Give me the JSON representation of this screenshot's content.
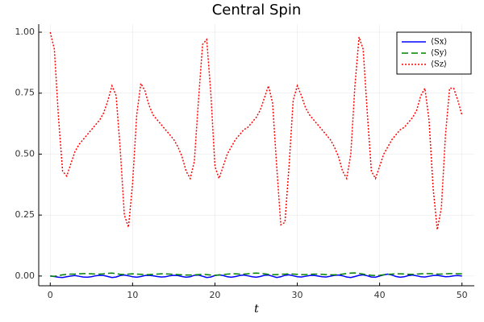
{
  "chart_data": {
    "type": "line",
    "title": "Central Spin",
    "x_label": "t",
    "x": [
      0,
      0.5,
      1,
      1.5,
      2,
      2.5,
      3,
      3.5,
      4,
      4.5,
      5,
      5.5,
      6,
      6.5,
      7,
      7.5,
      8,
      8.5,
      9,
      9.5,
      10,
      10.5,
      11,
      11.5,
      12,
      12.5,
      13,
      13.5,
      14,
      14.5,
      15,
      15.5,
      16,
      16.5,
      17,
      17.5,
      18,
      18.5,
      19,
      19.5,
      20,
      20.5,
      21,
      21.5,
      22,
      22.5,
      23,
      23.5,
      24,
      24.5,
      25,
      25.5,
      26,
      26.5,
      27,
      27.5,
      28,
      28.5,
      29,
      29.5,
      30,
      30.5,
      31,
      31.5,
      32,
      32.5,
      33,
      33.5,
      34,
      34.5,
      35,
      35.5,
      36,
      36.5,
      37,
      37.5,
      38,
      38.5,
      39,
      39.5,
      40,
      40.5,
      41,
      41.5,
      42,
      42.5,
      43,
      43.5,
      44,
      44.5,
      45,
      45.5,
      46,
      46.5,
      47,
      47.5,
      48,
      48.5,
      49,
      49.5,
      50
    ],
    "series": [
      {
        "name": "⟨Sx⟩",
        "color": "#0000ff",
        "dash": "solid",
        "values": [
          0,
          -0.002,
          -0.005,
          -0.006,
          -0.003,
          0,
          0.002,
          -0.001,
          -0.004,
          -0.005,
          -0.003,
          0.001,
          0.003,
          0.002,
          -0.002,
          -0.006,
          -0.004,
          0.002,
          0.004,
          0.001,
          -0.003,
          -0.005,
          -0.002,
          0.002,
          0.003,
          0.001,
          -0.002,
          -0.004,
          -0.003,
          0.001,
          0.003,
          0.002,
          -0.002,
          -0.005,
          -0.003,
          0.003,
          0.004,
          -0.001,
          -0.006,
          -0.004,
          0.002,
          0.005,
          0.002,
          -0.003,
          -0.005,
          -0.002,
          0.002,
          0.004,
          0.001,
          -0.003,
          -0.005,
          -0.002,
          0.003,
          0.004,
          -0.001,
          -0.006,
          -0.003,
          0.003,
          0.005,
          0.001,
          -0.003,
          -0.004,
          -0.001,
          0.002,
          0.003,
          0,
          -0.003,
          -0.004,
          -0.001,
          0.003,
          0.004,
          0.001,
          -0.004,
          -0.006,
          -0.002,
          0.003,
          0.005,
          0.001,
          -0.004,
          -0.005,
          0,
          0.005,
          0.008,
          0.004,
          -0.002,
          -0.005,
          -0.003,
          0.002,
          0.004,
          0.001,
          -0.003,
          -0.004,
          -0.001,
          0.002,
          0.003,
          0,
          -0.003,
          -0.002,
          0.001,
          0.002,
          0
        ]
      },
      {
        "name": "⟨Sy⟩",
        "color": "#008000",
        "dash": "dashed",
        "values": [
          0,
          -0.001,
          0.002,
          0.005,
          0.007,
          0.008,
          0.008,
          0.009,
          0.01,
          0.01,
          0.009,
          0.008,
          0.008,
          0.009,
          0.011,
          0.012,
          0.01,
          0.007,
          0.006,
          0.008,
          0.009,
          0.008,
          0.007,
          0.006,
          0.006,
          0.007,
          0.008,
          0.009,
          0.009,
          0.008,
          0.007,
          0.006,
          0.005,
          0.004,
          0.004,
          0.005,
          0.006,
          0.007,
          0.006,
          0.004,
          0.003,
          0.004,
          0.006,
          0.008,
          0.009,
          0.009,
          0.008,
          0.008,
          0.009,
          0.011,
          0.012,
          0.011,
          0.009,
          0.007,
          0.006,
          0.006,
          0.007,
          0.008,
          0.009,
          0.008,
          0.007,
          0.006,
          0.006,
          0.007,
          0.008,
          0.008,
          0.007,
          0.006,
          0.005,
          0.005,
          0.006,
          0.008,
          0.01,
          0.012,
          0.013,
          0.011,
          0.008,
          0.005,
          0.003,
          0.002,
          0.003,
          0.005,
          0.007,
          0.008,
          0.009,
          0.009,
          0.008,
          0.007,
          0.007,
          0.008,
          0.009,
          0.01,
          0.01,
          0.009,
          0.008,
          0.008,
          0.009,
          0.01,
          0.01,
          0.009,
          0.009
        ]
      },
      {
        "name": "⟨Sz⟩",
        "color": "#ff0000",
        "dash": "dotted",
        "values": [
          1.0,
          0.93,
          0.65,
          0.43,
          0.41,
          0.46,
          0.51,
          0.54,
          0.56,
          0.58,
          0.6,
          0.62,
          0.64,
          0.67,
          0.72,
          0.78,
          0.74,
          0.52,
          0.25,
          0.2,
          0.38,
          0.66,
          0.79,
          0.76,
          0.7,
          0.66,
          0.64,
          0.62,
          0.6,
          0.58,
          0.56,
          0.53,
          0.49,
          0.43,
          0.4,
          0.47,
          0.72,
          0.95,
          0.97,
          0.75,
          0.45,
          0.4,
          0.45,
          0.5,
          0.53,
          0.56,
          0.58,
          0.6,
          0.61,
          0.63,
          0.65,
          0.68,
          0.73,
          0.78,
          0.71,
          0.45,
          0.21,
          0.22,
          0.45,
          0.72,
          0.78,
          0.74,
          0.69,
          0.66,
          0.64,
          0.62,
          0.6,
          0.58,
          0.56,
          0.53,
          0.49,
          0.43,
          0.4,
          0.5,
          0.78,
          0.98,
          0.93,
          0.67,
          0.43,
          0.4,
          0.45,
          0.5,
          0.53,
          0.56,
          0.58,
          0.6,
          0.61,
          0.63,
          0.65,
          0.68,
          0.74,
          0.77,
          0.64,
          0.36,
          0.19,
          0.28,
          0.58,
          0.77,
          0.77,
          0.72,
          0.66
        ]
      }
    ],
    "xlim": [
      -1.4,
      51.5
    ],
    "ylim": [
      -0.04,
      1.033
    ],
    "xticks": [
      0,
      10,
      20,
      30,
      40,
      50
    ],
    "yticks": [
      {
        "value": 0,
        "label": "0.00"
      },
      {
        "value": 0.25,
        "label": "0.25"
      },
      {
        "value": 0.5,
        "label": "0.50"
      },
      {
        "value": 0.75,
        "label": "0.75"
      },
      {
        "value": 1,
        "label": "1.00"
      }
    ],
    "grid": true,
    "legend": "top-right"
  }
}
